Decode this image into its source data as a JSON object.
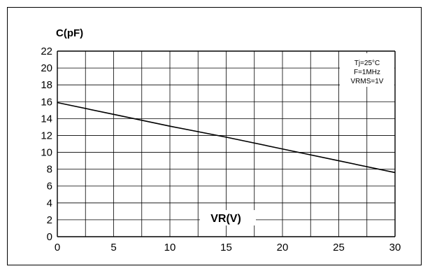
{
  "chart_data": {
    "type": "line",
    "title": "C(pF)",
    "xlabel": "VR(V)",
    "ylabel": "",
    "xlim": [
      0,
      30
    ],
    "ylim": [
      0,
      22
    ],
    "x_ticks": [
      0,
      5,
      10,
      15,
      20,
      25,
      30
    ],
    "y_ticks": [
      0,
      2,
      4,
      6,
      8,
      10,
      12,
      14,
      16,
      18,
      20,
      22
    ],
    "grid": true,
    "conditions": [
      "Tj=25°C",
      "F=1MHz",
      "VRMS=1V"
    ],
    "series": [
      {
        "x": [
          0,
          5,
          10,
          15,
          20,
          25,
          30
        ],
        "values": [
          15.9,
          14.5,
          13.1,
          11.8,
          10.4,
          9.0,
          7.6
        ],
        "color": "#000000"
      }
    ]
  }
}
